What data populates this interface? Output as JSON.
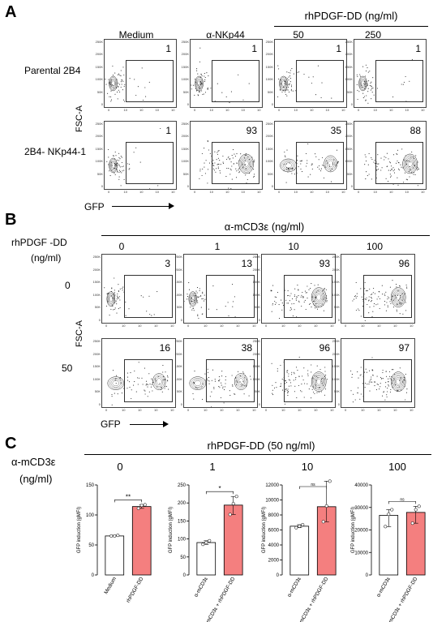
{
  "panelA": {
    "letter": "A",
    "group_header": "rhPDGF-DD (ng/ml)",
    "col_labels": [
      "Medium",
      "α-NKp44",
      "50",
      "250"
    ],
    "row_labels": [
      "Parental 2B4",
      "2B4- NKp44-1"
    ],
    "percentages": [
      [
        "1",
        "1",
        "1",
        "1"
      ],
      [
        "1",
        "93",
        "35",
        "88"
      ]
    ],
    "y_axis": "FSC-A",
    "x_axis": "GFP",
    "y_ticks": [
      "250K",
      "200K",
      "150K",
      "100K",
      "50K",
      "0"
    ],
    "x_ticks": [
      "0",
      "10",
      "10",
      "10",
      "10"
    ]
  },
  "panelB": {
    "letter": "B",
    "group_header": "α-mCD3ε (ng/ml)",
    "row_header_1": "rhPDGF  -DD",
    "row_header_2": "(ng/ml)",
    "col_labels": [
      "0",
      "1",
      "10",
      "100"
    ],
    "row_labels": [
      "0",
      "50"
    ],
    "percentages": [
      [
        "3",
        "13",
        "93",
        "96"
      ],
      [
        "16",
        "38",
        "96",
        "97"
      ]
    ],
    "y_axis": "FSC-A",
    "x_axis": "GFP",
    "y_ticks": [
      "250K",
      "200K",
      "150K",
      "100K",
      "50K",
      "0"
    ],
    "x_ticks": [
      "0",
      "10",
      "10",
      "10",
      "10"
    ]
  },
  "panelC": {
    "letter": "C",
    "group_header": "rhPDGF-DD (50 ng/ml)",
    "row_header_1": "α-mCD3ε",
    "row_header_2": "(ng/ml)",
    "col_labels": [
      "0",
      "1",
      "10",
      "100"
    ],
    "y_axis": "GFP induction (gMFI)",
    "colors": {
      "control": "#ffffff",
      "treated": "#f47f7f",
      "outline": "#000000"
    }
  },
  "chart_data": [
    {
      "type": "bar",
      "categories": [
        "Medium",
        "rhPDGF-DD"
      ],
      "values": [
        65,
        114
      ],
      "points": [
        [
          65,
          65,
          66
        ],
        [
          111,
          116,
          117
        ]
      ],
      "ylim": [
        0,
        150
      ],
      "yticks": [
        "0",
        "50",
        "100",
        "150"
      ],
      "ylabel": "GFP induction (gMFI)",
      "significance": "**"
    },
    {
      "type": "bar",
      "categories": [
        "α-mCD3ε",
        "α-mCD3ε + rhPDGF-DD"
      ],
      "values": [
        90,
        194
      ],
      "points": [
        [
          85,
          90,
          95
        ],
        [
          168,
          198,
          218
        ]
      ],
      "ylim": [
        0,
        250
      ],
      "yticks": [
        "0",
        "50",
        "100",
        "150",
        "200",
        "250"
      ],
      "ylabel": "GFP induction (gMFI)",
      "significance": "*"
    },
    {
      "type": "bar",
      "categories": [
        "α-mCD3ε",
        "α-mCD3ε + rhPDGF-DD"
      ],
      "values": [
        6500,
        9100
      ],
      "points": [
        [
          6300,
          6500,
          6700
        ],
        [
          7100,
          9200,
          12500
        ]
      ],
      "ylim": [
        0,
        12000
      ],
      "yticks": [
        "0",
        "2000",
        "4000",
        "6000",
        "8000",
        "10000",
        "12000"
      ],
      "ylabel": "GFP induction (gMFI)",
      "significance": "ns"
    },
    {
      "type": "bar",
      "categories": [
        "α-mCD3ε",
        "α-mCD3ε + rhPDGF-DD"
      ],
      "values": [
        26500,
        27800
      ],
      "points": [
        [
          21500,
          27000,
          29000
        ],
        [
          23000,
          29000,
          30500
        ]
      ],
      "ylim": [
        0,
        40000
      ],
      "yticks": [
        "0",
        "10000",
        "20000",
        "30000",
        "40000"
      ],
      "ylabel": "GFP induction (gMFI)",
      "significance": "ns"
    }
  ]
}
